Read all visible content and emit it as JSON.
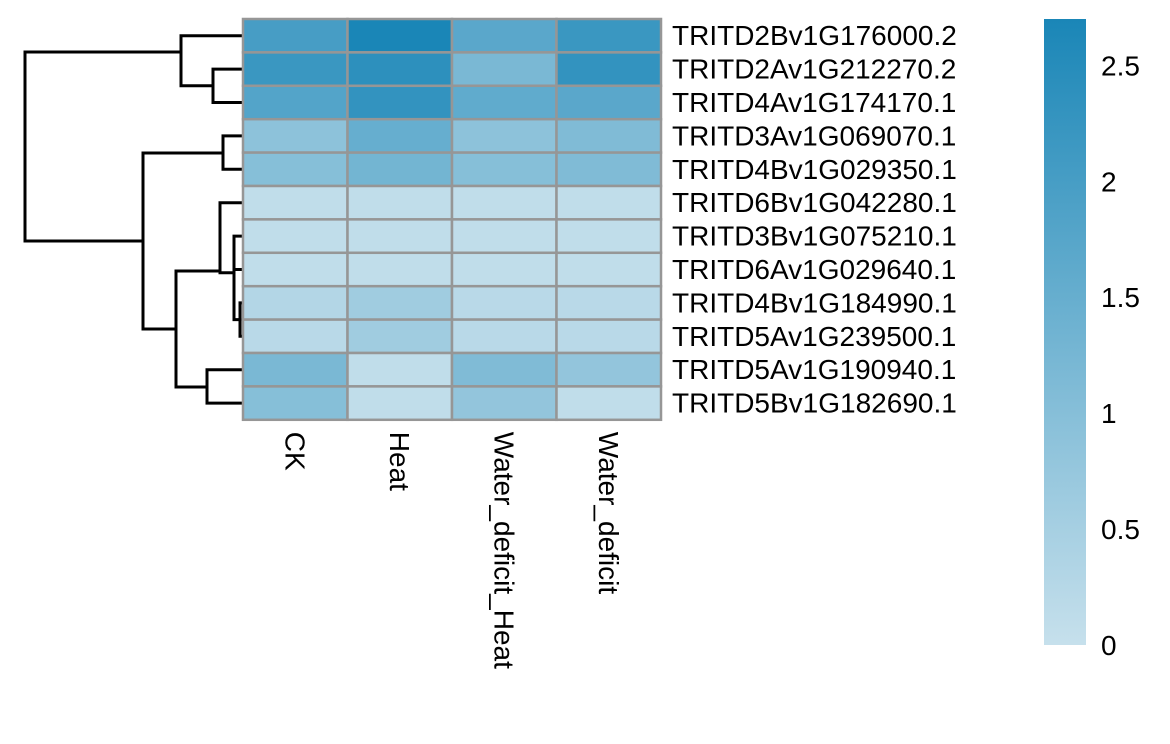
{
  "chart_data": {
    "type": "heatmap",
    "columns": [
      "CK",
      "Heat",
      "Water_deficit_Heat",
      "Water_deficit"
    ],
    "rows": [
      "TRITD2Bv1G176000.2",
      "TRITD2Av1G212270.2",
      "TRITD4Av1G174170.1",
      "TRITD3Av1G069070.1",
      "TRITD4Bv1G029350.1",
      "TRITD6Bv1G042280.1",
      "TRITD3Bv1G075210.1",
      "TRITD6Av1G029640.1",
      "TRITD4Bv1G184990.1",
      "TRITD5Av1G239500.1",
      "TRITD5Av1G190940.1",
      "TRITD5Bv1G182690.1"
    ],
    "values": [
      [
        2.0,
        2.7,
        1.7,
        2.2
      ],
      [
        2.2,
        2.4,
        1.2,
        2.3
      ],
      [
        1.8,
        2.3,
        1.6,
        1.7
      ],
      [
        0.9,
        1.5,
        0.9,
        1.1
      ],
      [
        1.0,
        1.3,
        1.0,
        1.1
      ],
      [
        0.1,
        0.1,
        0.1,
        0.1
      ],
      [
        0.1,
        0.1,
        0.1,
        0.1
      ],
      [
        0.1,
        0.1,
        0.1,
        0.1
      ],
      [
        0.3,
        0.6,
        0.2,
        0.2
      ],
      [
        0.2,
        0.6,
        0.2,
        0.2
      ],
      [
        1.2,
        0.1,
        1.1,
        0.8
      ],
      [
        1.0,
        0.1,
        0.8,
        0.1
      ]
    ],
    "color_scale": {
      "min": 0,
      "max": 2.7,
      "low_color": "#c6e0ec",
      "high_color": "#1a86b7"
    },
    "legend_ticks": [
      "0",
      "0.5",
      "1",
      "1.5",
      "2",
      "2.5"
    ],
    "legend_tick_values": [
      0,
      0.5,
      1,
      1.5,
      2,
      2.5
    ],
    "row_dendrogram": {
      "leaf_order": [
        "TRITD2Bv1G176000.2",
        "TRITD2Av1G212270.2",
        "TRITD4Av1G174170.1",
        "TRITD3Av1G069070.1",
        "TRITD4Bv1G029350.1",
        "TRITD6Bv1G042280.1",
        "TRITD3Bv1G075210.1",
        "TRITD6Av1G029640.1",
        "TRITD4Bv1G184990.1",
        "TRITD5Av1G239500.1",
        "TRITD5Av1G190940.1",
        "TRITD5Bv1G182690.1"
      ]
    },
    "cell_border_color": "#969696",
    "legend_position": "right"
  }
}
